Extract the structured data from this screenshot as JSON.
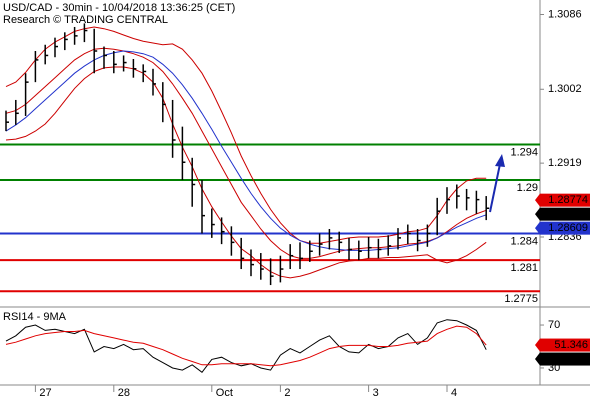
{
  "chart_data": [
    {
      "type": "ohlc",
      "title": "USD/CAD - 30min - 10/04/2018 13:36:25 (CET)",
      "subtitle": "Research © TRADING CENTRAL",
      "categories": [
        null,
        null,
        null,
        "27",
        null,
        null,
        null,
        null,
        null,
        null,
        null,
        "28",
        null,
        null,
        null,
        null,
        null,
        null,
        null,
        null,
        null,
        "Oct",
        null,
        null,
        null,
        null,
        null,
        null,
        "2",
        null,
        null,
        null,
        null,
        null,
        null,
        null,
        null,
        "3",
        null,
        null,
        null,
        null,
        null,
        null,
        null,
        "4",
        null,
        null,
        null,
        null
      ],
      "high": [
        1.2978,
        1.299,
        1.302,
        1.3045,
        1.3052,
        1.306,
        1.3066,
        1.3072,
        1.3076,
        1.307,
        1.305,
        1.3045,
        1.304,
        1.3036,
        1.303,
        1.3025,
        1.301,
        1.299,
        1.296,
        1.2925,
        1.29,
        1.2868,
        1.2858,
        1.2848,
        1.2835,
        1.2822,
        1.2818,
        1.2812,
        1.2815,
        1.2828,
        1.283,
        1.2832,
        1.284,
        1.2845,
        1.2842,
        1.2835,
        1.2832,
        1.2836,
        1.2834,
        1.2838,
        1.2846,
        1.285,
        1.2845,
        1.285,
        1.288,
        1.2892,
        1.2895,
        1.289,
        1.2888,
        1.2882
      ],
      "low": [
        1.2955,
        1.2962,
        1.2972,
        1.301,
        1.303,
        1.3038,
        1.3046,
        1.3052,
        1.3055,
        1.302,
        1.3025,
        1.302,
        1.3022,
        1.3015,
        1.301,
        1.2995,
        1.2965,
        1.2925,
        1.29,
        1.287,
        1.284,
        1.2835,
        1.2828,
        1.2815,
        1.28,
        1.2792,
        1.2788,
        1.2782,
        1.2785,
        1.28,
        1.28,
        1.2808,
        1.2815,
        1.2822,
        1.2818,
        1.281,
        1.281,
        1.2812,
        1.2812,
        1.2815,
        1.2822,
        1.2828,
        1.282,
        1.2825,
        1.2838,
        1.2862,
        1.2868,
        1.2866,
        1.2862,
        1.2855
      ],
      "close": [
        1.2965,
        1.2975,
        1.301,
        1.3035,
        1.304,
        1.305,
        1.3058,
        1.3062,
        1.3068,
        1.3045,
        1.304,
        1.303,
        1.3032,
        1.3025,
        1.3022,
        1.3008,
        1.2985,
        1.2945,
        1.292,
        1.2895,
        1.286,
        1.285,
        1.2842,
        1.283,
        1.2812,
        1.2805,
        1.28,
        1.2792,
        1.28,
        1.2815,
        1.2812,
        1.282,
        1.2828,
        1.2835,
        1.283,
        1.2822,
        1.282,
        1.2824,
        1.2822,
        1.2826,
        1.2835,
        1.284,
        1.2832,
        1.284,
        1.2865,
        1.2878,
        1.2882,
        1.288,
        1.2878,
        1.28683
      ],
      "color": "#000000",
      "series": [
        {
          "color": "#cc0000",
          "values": [
            1.3005,
            1.301,
            1.3021,
            1.3035,
            1.3047,
            1.3055,
            1.3061,
            1.3067,
            1.307,
            1.3072,
            1.307,
            1.3067,
            1.3063,
            1.3059,
            1.3056,
            1.3054,
            1.3052,
            1.3053,
            1.3047,
            1.3035,
            1.302,
            1.3,
            1.2977,
            1.2953,
            1.2927,
            1.2905,
            1.2885,
            1.2867,
            1.2852,
            1.284,
            1.2832,
            1.2829,
            1.2829,
            1.2831,
            1.2833,
            1.2835,
            1.2836,
            1.2836,
            1.2836,
            1.2837,
            1.2839,
            1.2842,
            1.2843,
            1.2846,
            1.286,
            1.2877,
            1.289,
            1.2899,
            1.2902,
            1.2902
          ]
        },
        {
          "color": "#cc0000",
          "values": [
            1.2975,
            1.2978,
            1.2985,
            1.2995,
            1.3005,
            1.3015,
            1.3025,
            1.3035,
            1.3042,
            1.3047,
            1.3048,
            1.3047,
            1.3045,
            1.3042,
            1.3038,
            1.3032,
            1.3022,
            1.3008,
            1.2992,
            1.2975,
            1.2955,
            1.2935,
            1.2915,
            1.2895,
            1.2875,
            1.286,
            1.2845,
            1.2832,
            1.2822,
            1.2815,
            1.2812,
            1.2812,
            1.2814,
            1.2817,
            1.282,
            1.2822,
            1.2823,
            1.2824,
            1.2824,
            1.2825,
            1.2826,
            1.2828,
            1.2829,
            1.2831,
            1.2835,
            1.2842,
            1.285,
            1.2857,
            1.2862,
            1.2866
          ]
        },
        {
          "color": "#cc0000",
          "values": [
            1.2945,
            1.2946,
            1.2949,
            1.2955,
            1.2963,
            1.2975,
            1.2989,
            1.3003,
            1.3014,
            1.3022,
            1.3026,
            1.3027,
            1.3027,
            1.3025,
            1.302,
            1.301,
            1.2992,
            1.2963,
            1.2937,
            1.2915,
            1.289,
            1.287,
            1.2853,
            1.2837,
            1.2823,
            1.2815,
            1.2805,
            1.2797,
            1.2792,
            1.279,
            1.2792,
            1.2795,
            1.2799,
            1.2803,
            1.2807,
            1.2809,
            1.281,
            1.2812,
            1.2812,
            1.2813,
            1.2813,
            1.2814,
            1.2815,
            1.2816,
            1.281,
            1.2807,
            1.281,
            1.2815,
            1.2822,
            1.283
          ]
        },
        {
          "color": "#2233cc",
          "values": [
            1.2955,
            1.2962,
            1.297,
            1.298,
            1.299,
            1.3,
            1.301,
            1.302,
            1.3028,
            1.3035,
            1.304,
            1.3043,
            1.3045,
            1.3044,
            1.3042,
            1.3038,
            1.303,
            1.302,
            1.3007,
            1.2992,
            1.2975,
            1.2957,
            1.2938,
            1.292,
            1.2902,
            1.2885,
            1.287,
            1.2857,
            1.2846,
            1.2838,
            1.2832,
            1.2828,
            1.2825,
            1.2823,
            1.2822,
            1.2821,
            1.2821,
            1.2821,
            1.2822,
            1.2823,
            1.2824,
            1.2826,
            1.2828,
            1.283,
            1.2835,
            1.2841,
            1.2847,
            1.2852,
            1.2857,
            1.28609
          ]
        }
      ],
      "levels": [
        {
          "value": 1.294,
          "color": "#008000"
        },
        {
          "value": 1.29,
          "color": "#008000"
        },
        {
          "value": 1.284,
          "color": "#2233cc"
        },
        {
          "value": 1.281,
          "color": "#e00000"
        },
        {
          "value": 1.2775,
          "color": "#e00000"
        }
      ],
      "tags": [
        {
          "value": 1.28774,
          "color": "#e00000"
        },
        {
          "value": 1.28683,
          "color": "#000000"
        },
        {
          "value": 1.28609,
          "color": "#2233cc"
        }
      ],
      "ylim": [
        1.27596,
        1.31023
      ],
      "yticks": [
        1.3086,
        1.3002,
        1.2919,
        1.2836
      ]
    },
    {
      "type": "line",
      "title": "RSI14 - 9MA",
      "series": [
        {
          "color": "#000000",
          "values": [
            55,
            60,
            68,
            70,
            65,
            66,
            64,
            62,
            66,
            45,
            50,
            48,
            52,
            47,
            48,
            40,
            35,
            30,
            28,
            33,
            26,
            38,
            40,
            35,
            32,
            34,
            30,
            28,
            42,
            48,
            44,
            50,
            56,
            60,
            50,
            45,
            44,
            52,
            48,
            50,
            58,
            62,
            52,
            58,
            72,
            75,
            74,
            70,
            65,
            46.9878
          ]
        },
        {
          "color": "#e00000",
          "values": [
            52,
            54,
            57,
            60,
            62,
            63,
            64,
            64,
            65,
            62,
            60,
            58,
            56,
            54,
            53,
            50,
            47,
            43,
            39,
            36,
            33,
            33,
            34,
            34,
            34,
            34,
            33,
            32,
            33,
            35,
            37,
            40,
            44,
            48,
            50,
            51,
            51,
            51,
            50,
            50,
            51,
            53,
            54,
            55,
            62,
            66,
            69,
            68,
            62,
            51.346
          ]
        }
      ],
      "tags": [
        {
          "value": 51.346,
          "color": "#e00000"
        },
        {
          "value": 46.9878,
          "color": "#000000"
        }
      ],
      "ylim": [
        16,
        84
      ],
      "yticks": [
        70,
        30
      ]
    }
  ]
}
